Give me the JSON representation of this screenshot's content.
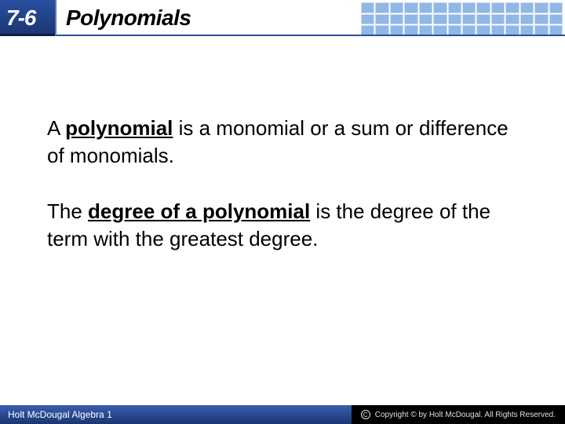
{
  "header": {
    "chapter_number": "7-6",
    "chapter_title": "Polynomials",
    "chapter_box_bg_start": "#2a4fa0",
    "chapter_box_bg_end": "#1a3570",
    "grid_cell_color": "#8fb8e8",
    "title_color": "#000000"
  },
  "content": {
    "paragraph1": {
      "prefix_text": "A ",
      "keyword": "polynomial",
      "suffix_text": " is a monomial or a sum or difference of monomials."
    },
    "paragraph2": {
      "prefix_text": "The ",
      "keyword": "degree of a polynomial",
      "suffix_text": " is the degree of the term with the greatest degree."
    },
    "font_size": 26,
    "text_color": "#000000"
  },
  "footer": {
    "left_text": "Holt McDougal Algebra 1",
    "right_text": "Copyright © by Holt McDougal. All Rights Reserved.",
    "left_bg_start": "#3a5fb0",
    "left_bg_end": "#1a3570",
    "right_bg": "#000000"
  }
}
